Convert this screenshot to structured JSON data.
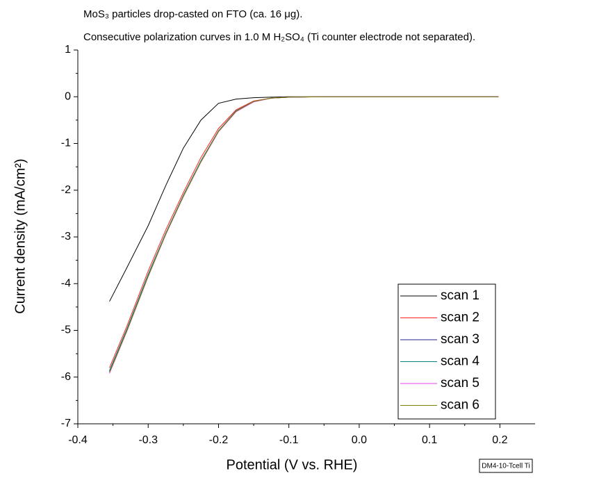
{
  "chart_data": {
    "type": "line",
    "annotations": [
      "MoS₃ particles drop-casted on FTO (ca. 16 μg).",
      "Consecutive polarization curves in 1.0 M H₂SO₄ (Ti counter electrode not separated)."
    ],
    "x_label": "Potential (V vs. RHE)",
    "y_label": "Current density (mA/cm²)",
    "note": "DM4-10-Tcell Ti",
    "xlim": [
      -0.4,
      0.25
    ],
    "xticks": [
      -0.4,
      -0.3,
      -0.2,
      -0.1,
      {
        "value": 0,
        "label": "0.0"
      },
      0.1,
      0.2
    ],
    "ylim": [
      -7,
      1
    ],
    "yticks": [
      -7,
      -6,
      -5,
      -4,
      -3,
      -2,
      -1,
      0,
      1
    ],
    "x": [
      -0.355,
      -0.33,
      -0.3,
      -0.275,
      -0.25,
      -0.225,
      -0.2,
      -0.175,
      -0.15,
      -0.125,
      -0.1,
      -0.05,
      0,
      0.1,
      0.198
    ],
    "series": [
      {
        "name": "scan 1",
        "color": "#000000",
        "values": [
          -4.38,
          -3.65,
          -2.76,
          -1.9,
          -1.1,
          -0.5,
          -0.14,
          -0.05,
          -0.02,
          -0.01,
          0,
          0,
          0,
          0,
          0
        ]
      },
      {
        "name": "scan 2",
        "color": "#ff2020",
        "values": [
          -5.8,
          -4.9,
          -3.73,
          -2.85,
          -2.05,
          -1.3,
          -0.68,
          -0.28,
          -0.09,
          -0.03,
          -0.01,
          0,
          0,
          0,
          0
        ]
      },
      {
        "name": "scan 3",
        "color": "#20208c",
        "values": [
          -5.88,
          -4.98,
          -3.82,
          -2.93,
          -2.12,
          -1.38,
          -0.74,
          -0.31,
          -0.1,
          -0.03,
          -0.01,
          0,
          0,
          0,
          0
        ]
      },
      {
        "name": "scan 4",
        "color": "#008080",
        "values": [
          -5.86,
          -4.96,
          -3.8,
          -2.92,
          -2.11,
          -1.37,
          -0.73,
          -0.3,
          -0.1,
          -0.03,
          -0.01,
          0,
          0,
          0,
          0
        ]
      },
      {
        "name": "scan 5",
        "color": "#e040e0",
        "values": [
          -5.92,
          -5.01,
          -3.85,
          -2.95,
          -2.14,
          -1.4,
          -0.75,
          -0.32,
          -0.11,
          -0.03,
          -0.01,
          0,
          0,
          0,
          0
        ]
      },
      {
        "name": "scan 6",
        "color": "#808000",
        "values": [
          -5.9,
          -5.0,
          -3.84,
          -2.94,
          -2.13,
          -1.39,
          -0.74,
          -0.31,
          -0.1,
          -0.03,
          -0.01,
          0,
          0,
          0,
          0
        ]
      }
    ]
  }
}
